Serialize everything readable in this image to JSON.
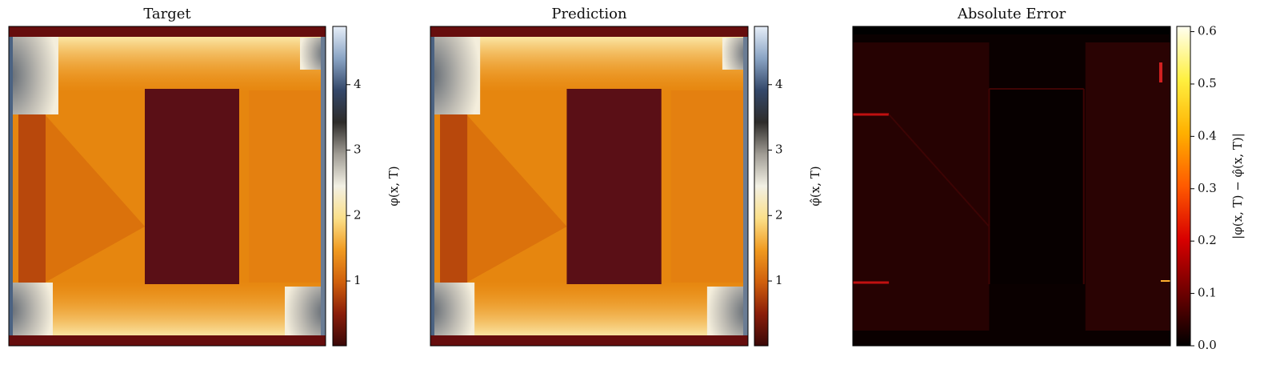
{
  "chart_data": [
    {
      "type": "heatmap",
      "title": "Target",
      "colorbar_label": "φ(x, T)",
      "clim": [
        0.01,
        4.89
      ],
      "cticks": [
        1,
        2,
        3,
        4
      ],
      "colormap": [
        "#3a0808",
        "#8a1e0a",
        "#d0600c",
        "#f09a20",
        "#fbe08a",
        "#f2f0e4",
        "#a09c94",
        "#2e2c2a",
        "#34486a",
        "#8aa4c4",
        "#e6eef8"
      ]
    },
    {
      "type": "heatmap",
      "title": "Prediction",
      "colorbar_label": "φ̂(x, T)",
      "clim": [
        0.01,
        4.89
      ],
      "cticks": [
        1,
        2,
        3,
        4
      ],
      "colormap": [
        "#3a0808",
        "#8a1e0a",
        "#d0600c",
        "#f09a20",
        "#fbe08a",
        "#f2f0e4",
        "#a09c94",
        "#2e2c2a",
        "#34486a",
        "#8aa4c4",
        "#e6eef8"
      ]
    },
    {
      "type": "heatmap",
      "title": "Absolute Error",
      "colorbar_label": "|φ(x, T) − φ̂(x, T)|",
      "clim": [
        0,
        0.61
      ],
      "cticks": [
        {
          "value": 0,
          "label": "0.0"
        },
        0.1,
        0.2,
        0.3,
        0.4,
        0.5,
        0.6
      ],
      "colormap": [
        "#000000",
        "#6e0000",
        "#d80000",
        "#ff5a00",
        "#ffb000",
        "#fff040",
        "#fffff0"
      ]
    }
  ]
}
